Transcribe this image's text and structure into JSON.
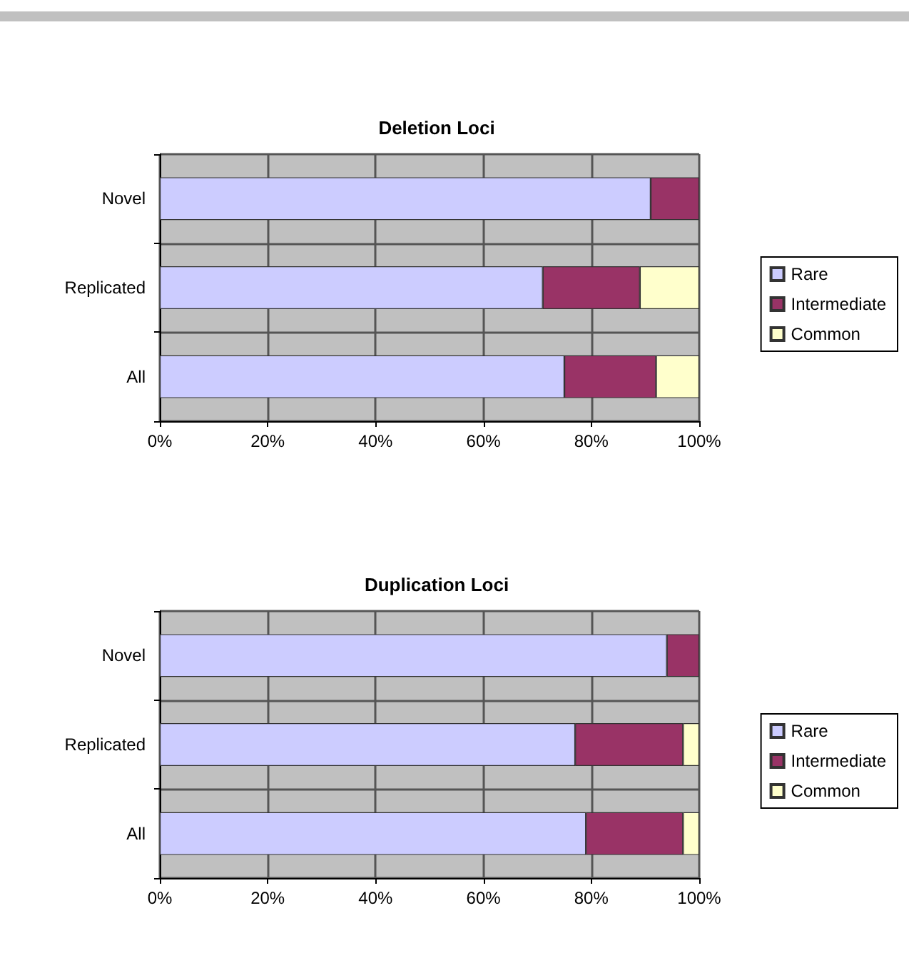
{
  "chart_data": [
    {
      "type": "bar",
      "title": "Deletion Loci",
      "orientation": "horizontal",
      "stacked": true,
      "categories": [
        "Novel",
        "Replicated",
        "All"
      ],
      "series": [
        {
          "name": "Rare",
          "color": "#ccccff",
          "values": [
            91,
            71,
            75
          ]
        },
        {
          "name": "Intermediate",
          "color": "#993366",
          "values": [
            9,
            18,
            17
          ]
        },
        {
          "name": "Common",
          "color": "#ffffcc",
          "values": [
            0,
            11,
            8
          ]
        }
      ],
      "xlim": [
        0,
        100
      ],
      "xticks": [
        {
          "value": 0,
          "label": "0%"
        },
        {
          "value": 20,
          "label": "20%"
        },
        {
          "value": 40,
          "label": "40%"
        },
        {
          "value": 60,
          "label": "60%"
        },
        {
          "value": 80,
          "label": "80%"
        },
        {
          "value": 100,
          "label": "100%"
        }
      ],
      "grid": true,
      "legend": "right"
    },
    {
      "type": "bar",
      "title": "Duplication Loci",
      "orientation": "horizontal",
      "stacked": true,
      "categories": [
        "Novel",
        "Replicated",
        "All"
      ],
      "series": [
        {
          "name": "Rare",
          "color": "#ccccff",
          "values": [
            94,
            77,
            79
          ]
        },
        {
          "name": "Intermediate",
          "color": "#993366",
          "values": [
            6,
            20,
            18
          ]
        },
        {
          "name": "Common",
          "color": "#ffffcc",
          "values": [
            0,
            3,
            3
          ]
        }
      ],
      "xlim": [
        0,
        100
      ],
      "xticks": [
        {
          "value": 0,
          "label": "0%"
        },
        {
          "value": 20,
          "label": "20%"
        },
        {
          "value": 40,
          "label": "40%"
        },
        {
          "value": 60,
          "label": "60%"
        },
        {
          "value": 80,
          "label": "80%"
        },
        {
          "value": 100,
          "label": "100%"
        }
      ],
      "grid": true,
      "legend": "right"
    }
  ]
}
